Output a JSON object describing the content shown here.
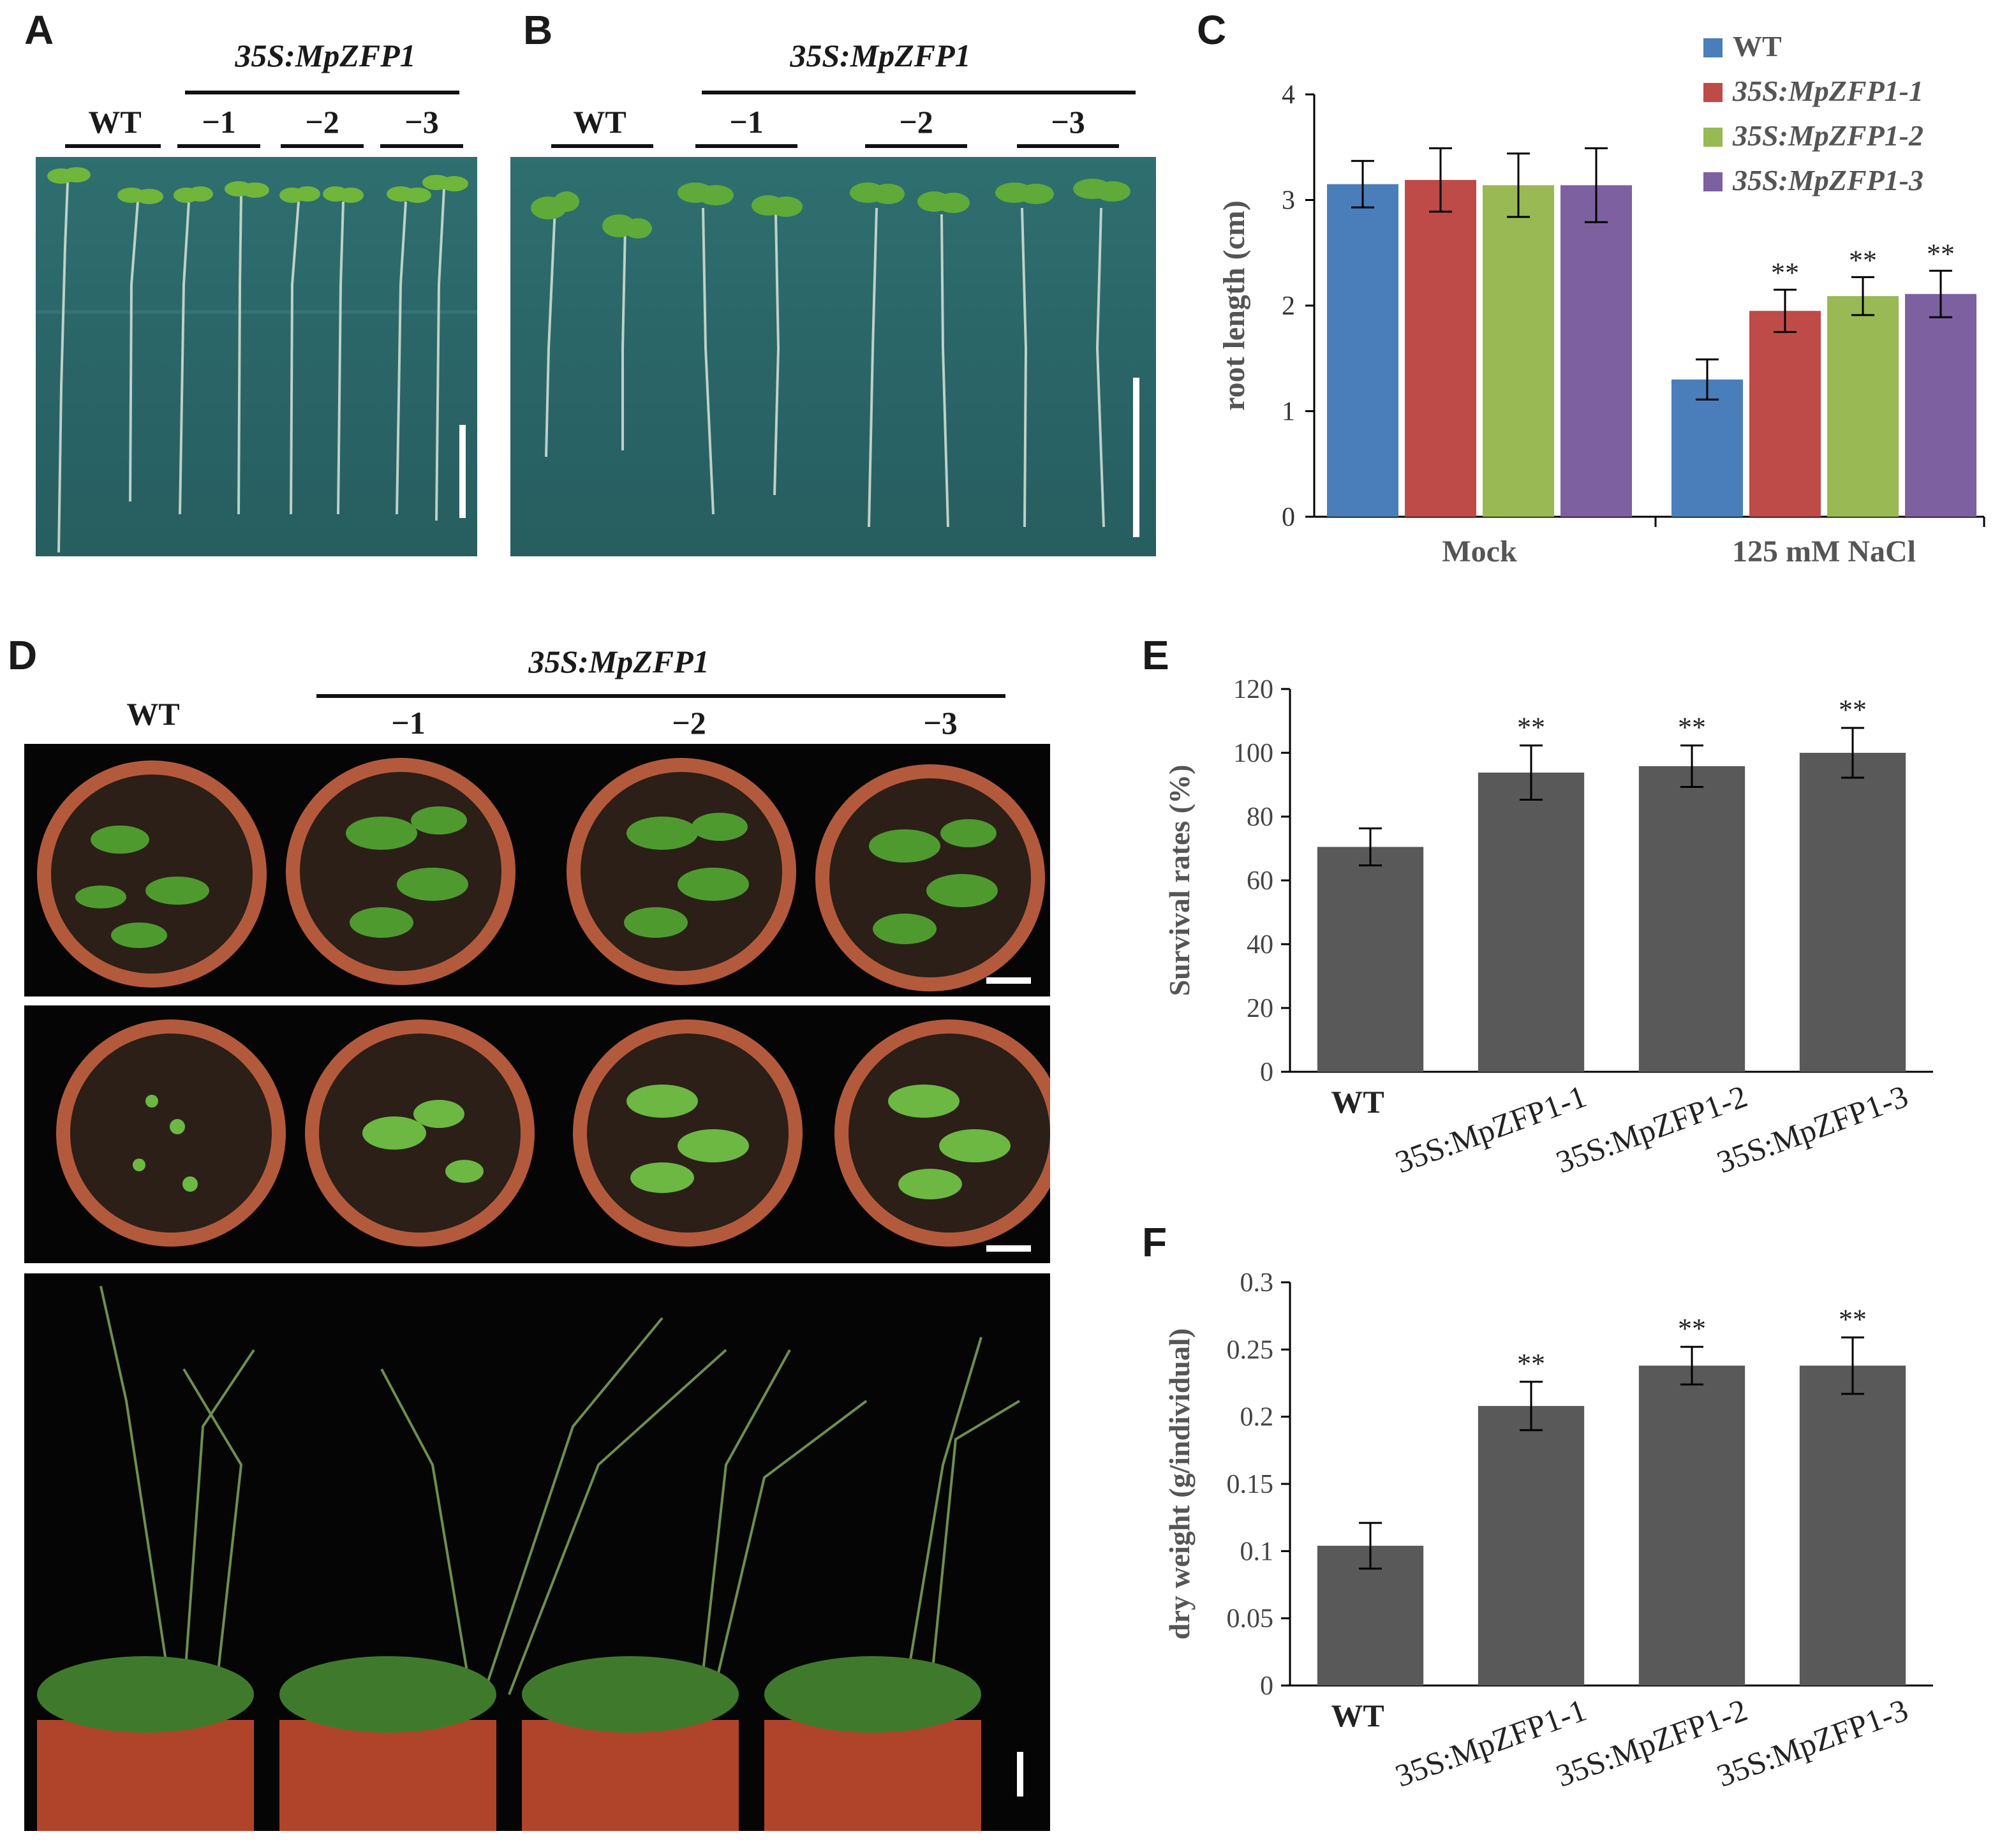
{
  "panels": {
    "A": {
      "label": "A",
      "transgene": "35S:MpZFP1",
      "groups": [
        "WT",
        "−1",
        "−2",
        "−3"
      ]
    },
    "B": {
      "label": "B",
      "transgene": "35S:MpZFP1",
      "groups": [
        "WT",
        "−1",
        "−2",
        "−3"
      ]
    },
    "D": {
      "label": "D",
      "transgene": "35S:MpZFP1",
      "groups": [
        "WT",
        "−1",
        "−2",
        "−3"
      ]
    }
  },
  "colors": {
    "WT": "#4a7ebb",
    "line1": "#be4b48",
    "line2": "#98b954",
    "line3": "#7d60a0",
    "gray_bar": "#595959"
  },
  "chart_data": [
    {
      "panel": "C",
      "type": "bar",
      "categories": [
        "Mock",
        "125 mM NaCl"
      ],
      "series": [
        {
          "name": "WT",
          "values": [
            3.15,
            1.3
          ],
          "errors": [
            0.22,
            0.19
          ],
          "sig": [
            "",
            ""
          ]
        },
        {
          "name": "35S:MpZFP1-1",
          "values": [
            3.19,
            1.95
          ],
          "errors": [
            0.3,
            0.2
          ],
          "sig": [
            "",
            "**"
          ]
        },
        {
          "name": "35S:MpZFP1-2",
          "values": [
            3.14,
            2.09
          ],
          "errors": [
            0.3,
            0.18
          ],
          "sig": [
            "",
            "**"
          ]
        },
        {
          "name": "35S:MpZFP1-3",
          "values": [
            3.14,
            2.11
          ],
          "errors": [
            0.35,
            0.22
          ],
          "sig": [
            "",
            "**"
          ]
        }
      ],
      "ylabel": "root length (cm)",
      "ylim": [
        0,
        4
      ],
      "yticks": [
        "0",
        "1",
        "2",
        "3",
        "4"
      ],
      "legend": "top-right"
    },
    {
      "panel": "E",
      "type": "bar",
      "categories": [
        "WT",
        "35S:MpZFP1-1",
        "35S:MpZFP1-2",
        "35S:MpZFP1-3"
      ],
      "values": [
        70.5,
        93.8,
        95.8,
        100
      ],
      "errors": [
        5.8,
        8.5,
        6.5,
        7.8
      ],
      "sig": [
        "",
        "**",
        "**",
        "**"
      ],
      "ylabel": "Survival rates (%)",
      "ylim": [
        0,
        120
      ],
      "yticks": [
        "0",
        "20",
        "40",
        "60",
        "80",
        "100",
        "120"
      ]
    },
    {
      "panel": "F",
      "type": "bar",
      "categories": [
        "WT",
        "35S:MpZFP1-1",
        "35S:MpZFP1-2",
        "35S:MpZFP1-3"
      ],
      "values": [
        0.104,
        0.208,
        0.238,
        0.238
      ],
      "errors": [
        0.017,
        0.018,
        0.014,
        0.021
      ],
      "sig": [
        "",
        "**",
        "**",
        "**"
      ],
      "ylabel": "dry weight (g/individual)",
      "ylim": [
        0,
        0.3
      ],
      "yticks": [
        "0",
        "0.05",
        "0.1",
        "0.15",
        "0.2",
        "0.25",
        "0.3"
      ]
    }
  ]
}
